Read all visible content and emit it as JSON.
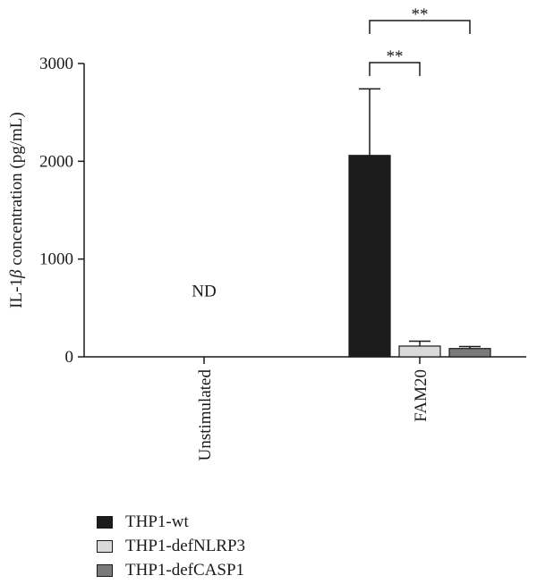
{
  "chart_data": {
    "type": "bar",
    "categories": [
      "Unstimulated",
      "FAM20"
    ],
    "ylabel": "IL-1β concentration (pg/mL)",
    "ylabel_prefix": "IL-1",
    "ylabel_symbol": "β",
    "ylabel_suffix": " concentration (pg/mL)",
    "ylim": [
      0,
      3000
    ],
    "yticks": [
      0,
      1000,
      2000,
      3000
    ],
    "ytick_labels": [
      "0",
      "1000",
      "2000",
      "3000"
    ],
    "series": [
      {
        "name": "THP1-wt",
        "color": "#1c1c1c",
        "values": [
          null,
          2060
        ],
        "errors": [
          null,
          680
        ]
      },
      {
        "name": "THP1-defNLRP3",
        "color": "#d9d9d9",
        "values": [
          null,
          110
        ],
        "errors": [
          null,
          50
        ]
      },
      {
        "name": "THP1-defCASP1",
        "color": "#7a7a7a",
        "values": [
          null,
          85
        ],
        "errors": [
          null,
          20
        ]
      }
    ],
    "annotations": [
      {
        "text": "ND",
        "category": "Unstimulated",
        "y": 680
      },
      {
        "text": "**",
        "from_series": 0,
        "to_series": 1,
        "category": "FAM20",
        "level": 1
      },
      {
        "text": "**",
        "from_series": 0,
        "to_series": 2,
        "category": "FAM20",
        "level": 2
      }
    ],
    "legend_position": "bottom-left",
    "grid": false
  }
}
